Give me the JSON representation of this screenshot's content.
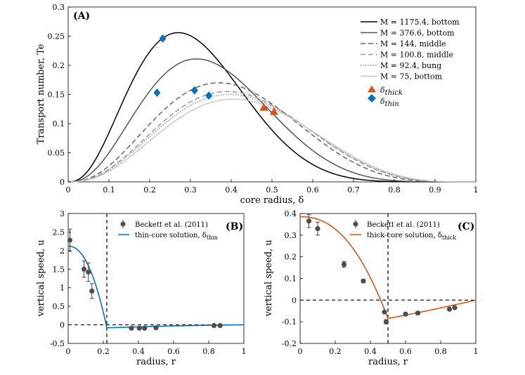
{
  "chart_data": [
    {
      "type": "line",
      "panel_label": "(A)",
      "xlabel": "core radius, δ",
      "ylabel": "Transport number, Te",
      "xlim": [
        0,
        1
      ],
      "ylim": [
        0,
        0.3
      ],
      "xticks": [
        "0",
        "0.1",
        "0.2",
        "0.3",
        "0.4",
        "0.5",
        "0.6",
        "0.7",
        "0.8",
        "0.9",
        "1"
      ],
      "yticks": [
        "0",
        "0.05",
        "0.1",
        "0.15",
        "0.2",
        "0.25",
        "0.3"
      ],
      "grid": false,
      "legend_position": "top-right",
      "series": [
        {
          "name": "M = 1175.4, bottom",
          "style": "solid",
          "color": "#000000",
          "peak": 0.256,
          "peak_at": 0.27
        },
        {
          "name": "M = 376.6, bottom",
          "style": "solid",
          "color": "#555555",
          "peak": 0.211,
          "peak_at": 0.315
        },
        {
          "name": "M = 144, middle",
          "style": "dashed",
          "color": "#666666",
          "peak": 0.17,
          "peak_at": 0.37
        },
        {
          "name": "M = 100.8, middle",
          "style": "dashed",
          "color": "#999999",
          "peak": 0.155,
          "peak_at": 0.39
        },
        {
          "name": "M = 92.4, bung",
          "style": "dotted",
          "color": "#8a8a8a",
          "peak": 0.15,
          "peak_at": 0.395
        },
        {
          "name": "M = 75, bottom",
          "style": "solid",
          "color": "#c8c8c8",
          "peak": 0.142,
          "peak_at": 0.405
        }
      ],
      "markers": {
        "thick": {
          "name_base": "δ",
          "name_sub": "thick",
          "color": "#d95319",
          "points": [
            {
              "x": 0.48,
              "y": 0.128
            },
            {
              "x": 0.505,
              "y": 0.121
            }
          ]
        },
        "thin": {
          "name_base": "δ",
          "name_sub": "thin",
          "color": "#0072bd",
          "points": [
            {
              "x": 0.232,
              "y": 0.246
            },
            {
              "x": 0.218,
              "y": 0.153
            },
            {
              "x": 0.31,
              "y": 0.157
            },
            {
              "x": 0.345,
              "y": 0.148
            }
          ]
        }
      }
    },
    {
      "type": "line",
      "panel_label": "(B)",
      "xlabel": "radius, r",
      "ylabel": "vertical speed, u",
      "xlim": [
        0,
        1
      ],
      "ylim": [
        -0.5,
        3
      ],
      "xticks": [
        "0",
        "0.2",
        "0.4",
        "0.6",
        "0.8",
        "1"
      ],
      "yticks": [
        "-0.5",
        "0",
        "0.5",
        "1",
        "1.5",
        "2",
        "2.5",
        "3"
      ],
      "vline": 0.22,
      "hline": 0,
      "legend_position": "top-right",
      "legend": {
        "data_label": "Beckett et al. (2011)",
        "line_label": "thin-core solution, δ",
        "line_sub": "thin"
      },
      "line_color": "#0072bd",
      "data_points": [
        {
          "x": 0.01,
          "y": 2.28,
          "err": 0.3
        },
        {
          "x": 0.09,
          "y": 1.5,
          "err": 0.22
        },
        {
          "x": 0.115,
          "y": 1.42,
          "err": 0.25
        },
        {
          "x": 0.135,
          "y": 0.91,
          "err": 0.2
        },
        {
          "x": 0.36,
          "y": -0.09,
          "err": 0
        },
        {
          "x": 0.405,
          "y": -0.09,
          "err": 0
        },
        {
          "x": 0.435,
          "y": -0.09,
          "err": 0
        },
        {
          "x": 0.5,
          "y": -0.08,
          "err": 0
        },
        {
          "x": 0.83,
          "y": -0.02,
          "err": 0
        },
        {
          "x": 0.865,
          "y": -0.02,
          "err": 0
        }
      ]
    },
    {
      "type": "line",
      "panel_label": "(C)",
      "xlabel": "radius, r",
      "ylabel": "vertical speed, u",
      "xlim": [
        0,
        1
      ],
      "ylim": [
        -0.2,
        0.4
      ],
      "xticks": [
        "0",
        "0.2",
        "0.4",
        "0.6",
        "0.8",
        "1"
      ],
      "yticks": [
        "-0.2",
        "-0.1",
        "0",
        "0.1",
        "0.2",
        "0.3",
        "0.4"
      ],
      "vline": 0.5,
      "hline": 0,
      "legend_position": "top-right",
      "legend": {
        "data_label": "Beckett et al. (2011)",
        "line_label": "thick-core solution, δ",
        "line_sub": "thick"
      },
      "line_color": "#d95319",
      "data_points": [
        {
          "x": 0.05,
          "y": 0.365,
          "err": 0.03
        },
        {
          "x": 0.1,
          "y": 0.33,
          "err": 0.03
        },
        {
          "x": 0.25,
          "y": 0.165,
          "err": 0.013
        },
        {
          "x": 0.36,
          "y": 0.088,
          "err": 0.007
        },
        {
          "x": 0.48,
          "y": -0.055,
          "err": 0
        },
        {
          "x": 0.49,
          "y": -0.1,
          "err": 0.01
        },
        {
          "x": 0.6,
          "y": -0.065,
          "err": 0.007
        },
        {
          "x": 0.67,
          "y": -0.06,
          "err": 0.007
        },
        {
          "x": 0.85,
          "y": -0.042,
          "err": 0
        },
        {
          "x": 0.88,
          "y": -0.035,
          "err": 0
        }
      ]
    }
  ]
}
